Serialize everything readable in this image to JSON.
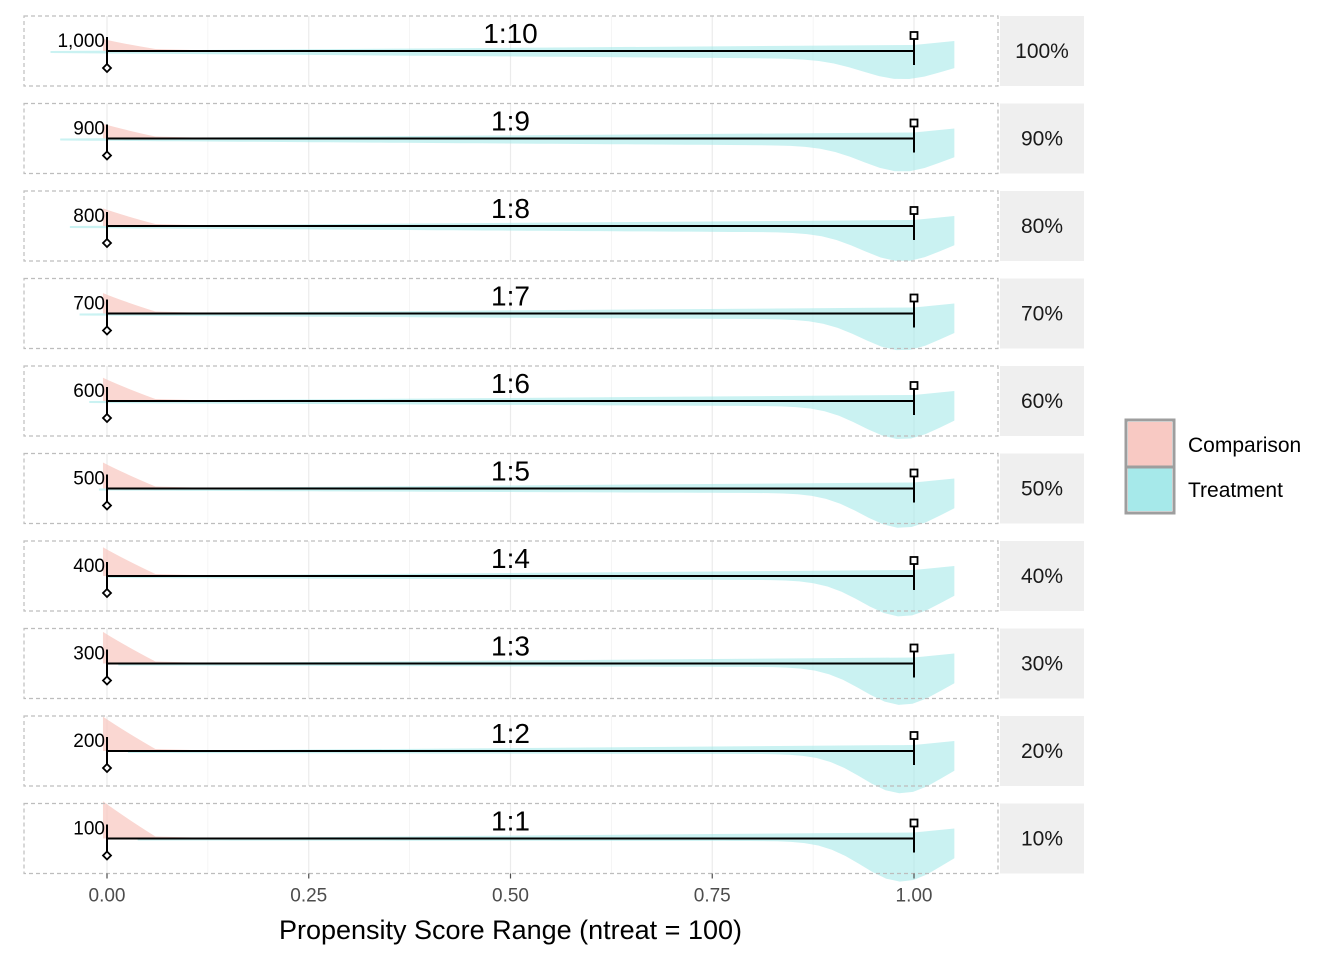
{
  "chart_data": {
    "type": "area",
    "xlabel": "Propensity Score Range (ntreat = 100)",
    "x_ticks": [
      "0.00",
      "0.25",
      "0.50",
      "0.75",
      "1.00"
    ],
    "x_tick_values": [
      0,
      0.25,
      0.5,
      0.75,
      1.0
    ],
    "xlim": [
      -0.1,
      1.1
    ],
    "grid": true,
    "legend_position": "right",
    "series": [
      {
        "name": "Comparison",
        "color": "#f8c9c3"
      },
      {
        "name": "Treatment",
        "color": "#a6e9ea"
      }
    ],
    "panels": [
      {
        "strip": "100%",
        "ratio": "1:10",
        "count": "1,000",
        "range": [
          0.0,
          1.0
        ]
      },
      {
        "strip": "90%",
        "ratio": "1:9",
        "count": "900",
        "range": [
          0.0,
          1.0
        ]
      },
      {
        "strip": "80%",
        "ratio": "1:8",
        "count": "800",
        "range": [
          0.0,
          1.0
        ]
      },
      {
        "strip": "70%",
        "ratio": "1:7",
        "count": "700",
        "range": [
          0.0,
          1.0
        ]
      },
      {
        "strip": "60%",
        "ratio": "1:6",
        "count": "600",
        "range": [
          0.0,
          1.0
        ]
      },
      {
        "strip": "50%",
        "ratio": "1:5",
        "count": "500",
        "range": [
          0.0,
          1.0
        ]
      },
      {
        "strip": "40%",
        "ratio": "1:4",
        "count": "400",
        "range": [
          0.0,
          1.0
        ]
      },
      {
        "strip": "30%",
        "ratio": "1:3",
        "count": "300",
        "range": [
          0.0,
          1.0
        ]
      },
      {
        "strip": "20%",
        "ratio": "1:2",
        "count": "200",
        "range": [
          0.0,
          1.0
        ]
      },
      {
        "strip": "10%",
        "ratio": "1:1",
        "count": "100",
        "range": [
          0.0,
          1.0
        ]
      }
    ]
  }
}
